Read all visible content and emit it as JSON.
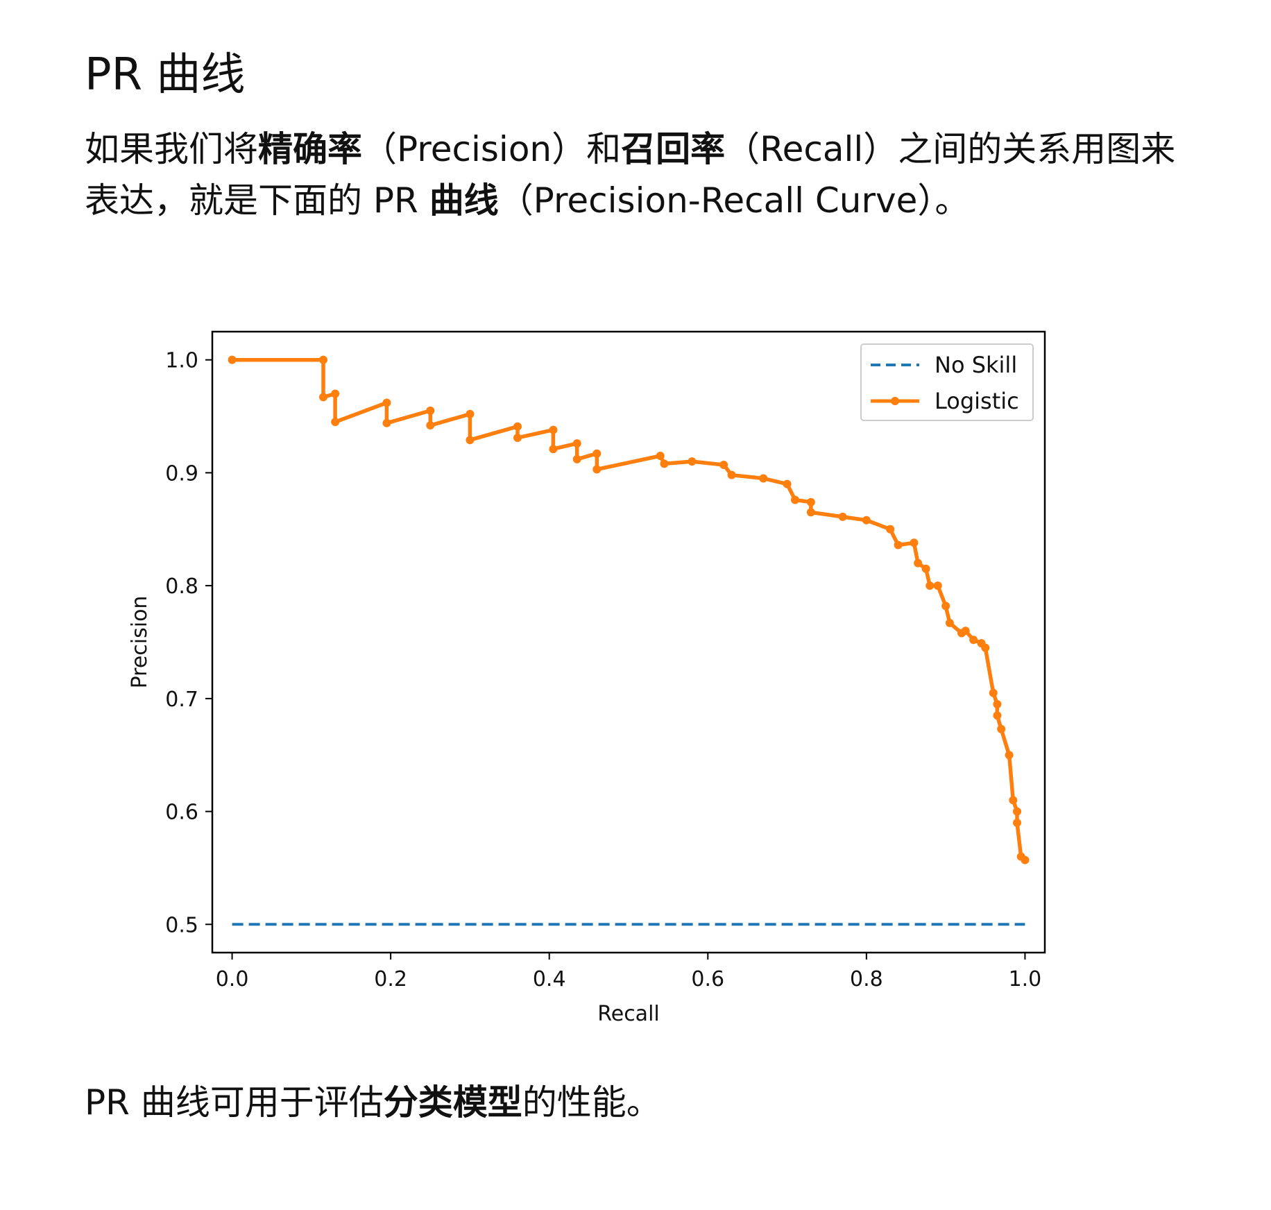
{
  "heading": "PR 曲线",
  "para1": {
    "t1": "如果我们将",
    "b1": "精确率",
    "t2": "（Precision）和",
    "b2": "召回率",
    "t3": "（Recall）之间的关系用图来表达，就是下面的 PR ",
    "b3": "曲线",
    "t4": "（Precision-Recall Curve）。"
  },
  "para2": {
    "t1": "PR 曲线可用于评估",
    "b1": "分类模型",
    "t2": "的性能。"
  },
  "chart_data": {
    "type": "line",
    "xlabel": "Recall",
    "ylabel": "Precision",
    "xlim": [
      -0.025,
      1.025
    ],
    "ylim": [
      0.475,
      1.025
    ],
    "xticks": [
      0.0,
      0.2,
      0.4,
      0.6,
      0.8,
      1.0
    ],
    "xtick_labels": [
      "0.0",
      "0.2",
      "0.4",
      "0.6",
      "0.8",
      "1.0"
    ],
    "yticks": [
      0.5,
      0.6,
      0.7,
      0.8,
      0.9,
      1.0
    ],
    "ytick_labels": [
      "0.5",
      "0.6",
      "0.7",
      "0.8",
      "0.9",
      "1.0"
    ],
    "grid": false,
    "legend_position": "top-right",
    "series": [
      {
        "name": "No Skill",
        "color": "#1f77b4",
        "style": "dashed",
        "x": [
          0.0,
          1.0
        ],
        "y": [
          0.5,
          0.5
        ]
      },
      {
        "name": "Logistic",
        "color": "#ff7f0e",
        "style": "solid-marker",
        "x": [
          0.0,
          0.115,
          0.115,
          0.13,
          0.13,
          0.195,
          0.195,
          0.25,
          0.25,
          0.3,
          0.3,
          0.36,
          0.36,
          0.405,
          0.405,
          0.435,
          0.435,
          0.46,
          0.46,
          0.54,
          0.545,
          0.58,
          0.62,
          0.63,
          0.67,
          0.7,
          0.71,
          0.73,
          0.73,
          0.77,
          0.8,
          0.83,
          0.84,
          0.86,
          0.865,
          0.875,
          0.88,
          0.89,
          0.9,
          0.905,
          0.92,
          0.925,
          0.935,
          0.945,
          0.95,
          0.96,
          0.965,
          0.965,
          0.97,
          0.98,
          0.985,
          0.99,
          0.99,
          0.995,
          1.0
        ],
        "y": [
          1.0,
          1.0,
          0.967,
          0.97,
          0.945,
          0.962,
          0.944,
          0.955,
          0.942,
          0.952,
          0.929,
          0.941,
          0.931,
          0.938,
          0.921,
          0.926,
          0.912,
          0.917,
          0.903,
          0.915,
          0.908,
          0.91,
          0.907,
          0.898,
          0.895,
          0.89,
          0.876,
          0.874,
          0.865,
          0.861,
          0.858,
          0.85,
          0.836,
          0.838,
          0.82,
          0.815,
          0.8,
          0.8,
          0.782,
          0.767,
          0.758,
          0.76,
          0.752,
          0.749,
          0.745,
          0.705,
          0.695,
          0.685,
          0.673,
          0.65,
          0.61,
          0.6,
          0.59,
          0.56,
          0.557
        ]
      }
    ]
  }
}
